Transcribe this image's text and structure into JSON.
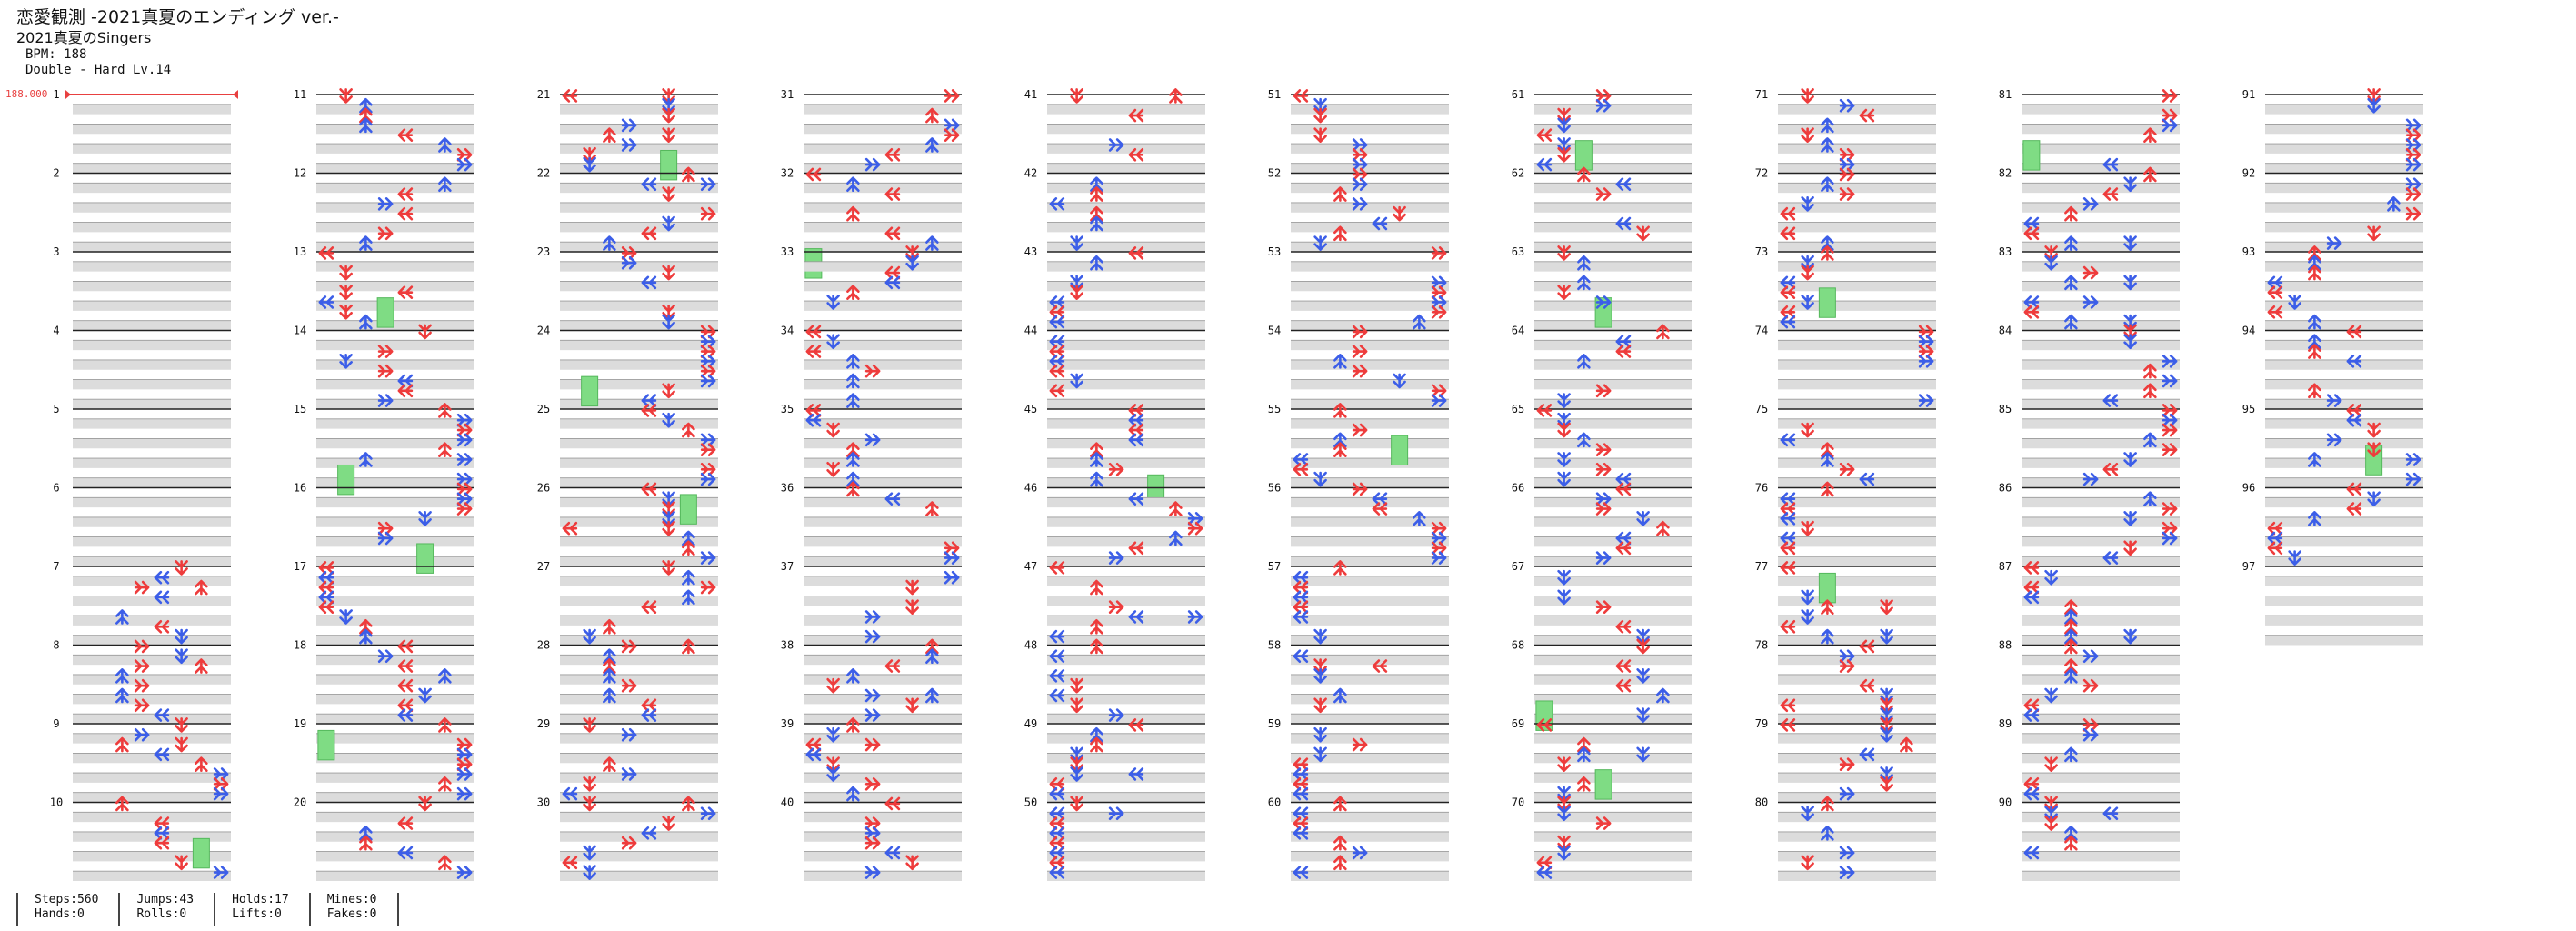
{
  "song": {
    "title": "恋愛観測 -2021真夏のエンディング ver.-",
    "artist": "2021真夏のSingers",
    "bpm_text": "BPM: 188",
    "difficulty_text": "Double - Hard Lv.14"
  },
  "bpm_marker": "188.000",
  "measure_numbers": [
    1,
    2,
    3,
    4,
    5,
    6,
    7,
    8,
    9,
    10,
    11,
    12,
    13,
    14,
    15,
    16,
    17,
    18,
    19,
    20,
    21,
    22,
    23,
    24,
    25,
    26,
    27,
    28,
    29,
    30,
    31,
    32,
    33,
    34,
    35,
    36,
    37,
    38,
    39,
    40,
    41,
    42,
    43,
    44,
    45,
    46,
    47,
    48,
    49,
    50,
    51,
    52,
    53,
    54,
    55,
    56,
    57,
    58,
    59,
    60,
    61,
    62,
    63,
    64,
    65,
    66,
    67,
    68,
    69,
    70,
    71,
    72,
    73,
    74,
    75,
    76,
    77,
    78,
    79,
    80,
    81,
    82,
    83,
    84,
    85,
    86,
    87,
    88,
    89,
    90,
    91,
    92,
    93,
    94,
    95,
    96,
    97
  ],
  "arrow_colors": {
    "quarter": "#ee3c3c",
    "eighth": "#3c5ee8",
    "hold": "#7fdc84",
    "mine": "#f2dd4a"
  },
  "stats": {
    "steps": "Steps:560",
    "hands": "Hands:0",
    "jumps": "Jumps:43",
    "rolls": "Rolls:0",
    "holds": "Holds:17",
    "lifts": "Lifts:0",
    "mines": "Mines:0",
    "fakes": "Fakes:0"
  }
}
